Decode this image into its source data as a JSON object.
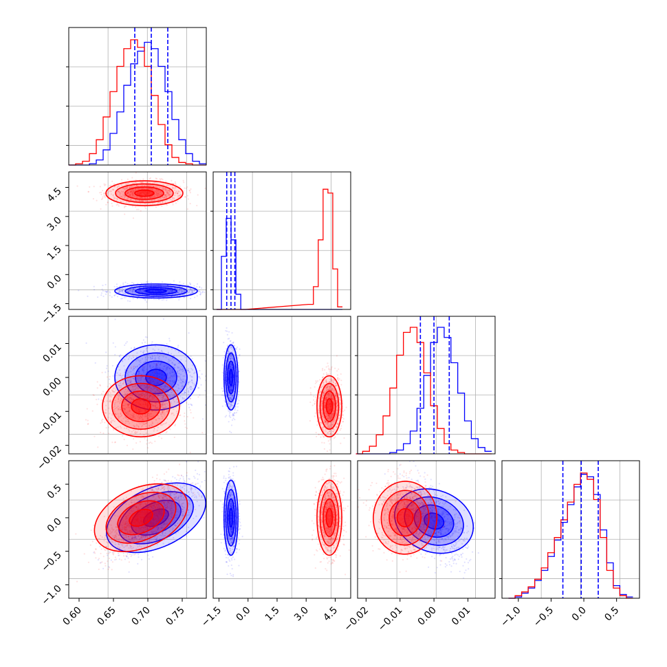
{
  "colors": {
    "blue": "#0000ff",
    "red": "#ff0000",
    "grid": "#b0b0b0"
  },
  "chart_data": [
    {
      "type": "histogram",
      "panel": "row1-col1",
      "x": [
        0.59,
        0.6,
        0.61,
        0.62,
        0.63,
        0.64,
        0.65,
        0.66,
        0.67,
        0.68,
        0.69,
        0.7,
        0.71,
        0.72,
        0.73,
        0.74,
        0.75,
        0.76,
        0.77,
        0.78
      ],
      "xlim": [
        0.585,
        0.785
      ],
      "series": [
        {
          "color": "blue",
          "values": [
            0,
            0,
            0,
            0.01,
            0.04,
            0.12,
            0.25,
            0.42,
            0.63,
            0.8,
            0.9,
            0.97,
            0.92,
            0.78,
            0.58,
            0.36,
            0.2,
            0.09,
            0.03,
            0.01
          ]
        },
        {
          "color": "red",
          "values": [
            0,
            0.01,
            0.03,
            0.09,
            0.2,
            0.38,
            0.58,
            0.78,
            0.92,
            0.99,
            0.93,
            0.78,
            0.55,
            0.32,
            0.16,
            0.06,
            0.02,
            0.01,
            0,
            0
          ]
        }
      ],
      "quantile_lines": [
        0.681,
        0.705,
        0.729
      ]
    },
    {
      "type": "scatter-density",
      "panel": "row2-col1",
      "xlim": [
        0.585,
        0.785
      ],
      "ylim": [
        -1.8,
        5.3
      ],
      "yticklabels": [
        "−1.5",
        "0.0",
        "1.5",
        "3.0",
        "4.5"
      ],
      "series": [
        {
          "color": "red",
          "center": [
            0.695,
            4.2
          ],
          "spread": [
            0.028,
            0.32
          ]
        },
        {
          "color": "blue",
          "center": [
            0.712,
            -0.85
          ],
          "spread": [
            0.03,
            0.18
          ]
        }
      ]
    },
    {
      "type": "histogram",
      "panel": "row2-col2",
      "x": [
        -1.5,
        -1.25,
        -1.0,
        -0.75,
        -0.5,
        -0.25,
        3.25,
        3.5,
        3.75,
        4.0,
        4.25,
        4.5,
        4.75
      ],
      "xlim": [
        -1.8,
        5.3
      ],
      "series": [
        {
          "color": "blue",
          "values": [
            0,
            0.42,
            0.72,
            0.55,
            0.12,
            0,
            0,
            0,
            0,
            0,
            0,
            0,
            0
          ]
        },
        {
          "color": "red",
          "values": [
            0,
            0,
            0,
            0,
            0,
            0,
            0.04,
            0.18,
            0.55,
            0.95,
            0.92,
            0.32,
            0.02
          ]
        }
      ],
      "quantile_lines": [
        -1.1,
        -0.88,
        -0.68
      ]
    },
    {
      "type": "scatter-density",
      "panel": "row3-col1",
      "xlim": [
        0.585,
        0.785
      ],
      "ylim": [
        -0.0225,
        0.018
      ],
      "yticklabels": [
        "−0.02",
        "−0.01",
        "0.00",
        "0.01"
      ],
      "series": [
        {
          "color": "blue",
          "center": [
            0.712,
            0.0
          ],
          "spread": [
            0.03,
            0.0048
          ]
        },
        {
          "color": "red",
          "center": [
            0.69,
            -0.0085
          ],
          "spread": [
            0.028,
            0.0045
          ]
        }
      ]
    },
    {
      "type": "scatter-density",
      "panel": "row3-col2",
      "xlim": [
        -1.8,
        5.3
      ],
      "ylim": [
        -0.0225,
        0.018
      ],
      "series": [
        {
          "color": "blue",
          "center": [
            -0.88,
            0.0
          ],
          "spread": [
            0.18,
            0.0048
          ]
        },
        {
          "color": "red",
          "center": [
            4.2,
            -0.0085
          ],
          "spread": [
            0.32,
            0.0045
          ]
        }
      ]
    },
    {
      "type": "histogram",
      "panel": "row3-col3",
      "x": [
        -0.022,
        -0.02,
        -0.018,
        -0.016,
        -0.014,
        -0.012,
        -0.01,
        -0.008,
        -0.006,
        -0.004,
        -0.002,
        0.0,
        0.002,
        0.004,
        0.006,
        0.008,
        0.01,
        0.012,
        0.014,
        0.016
      ],
      "xlim": [
        -0.0225,
        0.018
      ],
      "series": [
        {
          "color": "blue",
          "values": [
            0,
            0,
            0,
            0,
            0,
            0.01,
            0.03,
            0.08,
            0.18,
            0.36,
            0.62,
            0.88,
            1.0,
            0.92,
            0.72,
            0.48,
            0.26,
            0.12,
            0.05,
            0.02
          ]
        },
        {
          "color": "red",
          "values": [
            0,
            0.02,
            0.06,
            0.15,
            0.3,
            0.52,
            0.78,
            0.96,
            1.0,
            0.88,
            0.64,
            0.38,
            0.2,
            0.08,
            0.03,
            0.01,
            0,
            0,
            0,
            0
          ]
        }
      ],
      "quantile_lines": [
        -0.004,
        0.0,
        0.0045
      ]
    },
    {
      "type": "scatter-density",
      "panel": "row4-col1",
      "xlim": [
        0.585,
        0.785
      ],
      "ylim": [
        -1.2,
        0.85
      ],
      "yticklabels": [
        "−1.0",
        "−0.5",
        "0.0",
        "0.5"
      ],
      "series": [
        {
          "color": "blue",
          "center": [
            0.712,
            0.0
          ],
          "spread": [
            0.03,
            0.28
          ],
          "corr": 0.7
        },
        {
          "color": "red",
          "center": [
            0.69,
            0.0
          ],
          "spread": [
            0.028,
            0.28
          ],
          "corr": 0.7
        }
      ]
    },
    {
      "type": "scatter-density",
      "panel": "row4-col2",
      "xlim": [
        -1.8,
        5.3
      ],
      "ylim": [
        -1.2,
        0.85
      ],
      "series": [
        {
          "color": "blue",
          "center": [
            -0.88,
            0.0
          ],
          "spread": [
            0.18,
            0.28
          ]
        },
        {
          "color": "red",
          "center": [
            4.2,
            0.0
          ],
          "spread": [
            0.32,
            0.28
          ]
        }
      ]
    },
    {
      "type": "scatter-density",
      "panel": "row4-col3",
      "xlim": [
        -0.0225,
        0.018
      ],
      "ylim": [
        -1.2,
        0.85
      ],
      "series": [
        {
          "color": "blue",
          "center": [
            0.0,
            -0.05
          ],
          "spread": [
            0.0048,
            0.28
          ],
          "corr": -0.6
        },
        {
          "color": "red",
          "center": [
            -0.0085,
            0.0
          ],
          "spread": [
            0.0045,
            0.28
          ],
          "corr": -0.1
        }
      ]
    },
    {
      "type": "histogram",
      "panel": "row4-col4",
      "x": [
        -1.1,
        -1.0,
        -0.9,
        -0.8,
        -0.7,
        -0.6,
        -0.5,
        -0.4,
        -0.3,
        -0.2,
        -0.1,
        0.0,
        0.1,
        0.2,
        0.3,
        0.4,
        0.5,
        0.6,
        0.7
      ],
      "xlim": [
        -1.25,
        0.85
      ],
      "series": [
        {
          "color": "blue",
          "values": [
            0,
            0.01,
            0.04,
            0.08,
            0.14,
            0.22,
            0.33,
            0.46,
            0.6,
            0.74,
            0.88,
            0.98,
            0.96,
            0.82,
            0.54,
            0.28,
            0.1,
            0.03,
            0.01
          ]
        },
        {
          "color": "red",
          "values": [
            0,
            0.02,
            0.05,
            0.09,
            0.15,
            0.24,
            0.36,
            0.48,
            0.62,
            0.76,
            0.9,
            0.99,
            0.94,
            0.78,
            0.48,
            0.22,
            0.08,
            0.02,
            0
          ]
        }
      ],
      "quantile_lines": [
        -0.32,
        -0.04,
        0.22
      ]
    }
  ],
  "axes": {
    "col1_ticks": [
      "0.60",
      "0.65",
      "0.70",
      "0.75"
    ],
    "col2_ticks": [
      "−1.5",
      "0.0",
      "1.5",
      "3.0",
      "4.5"
    ],
    "col3_ticks": [
      "−0.02",
      "−0.01",
      "0.00",
      "0.01"
    ],
    "col4_ticks": [
      "−1.0",
      "−0.5",
      "0.0",
      "0.5"
    ]
  }
}
